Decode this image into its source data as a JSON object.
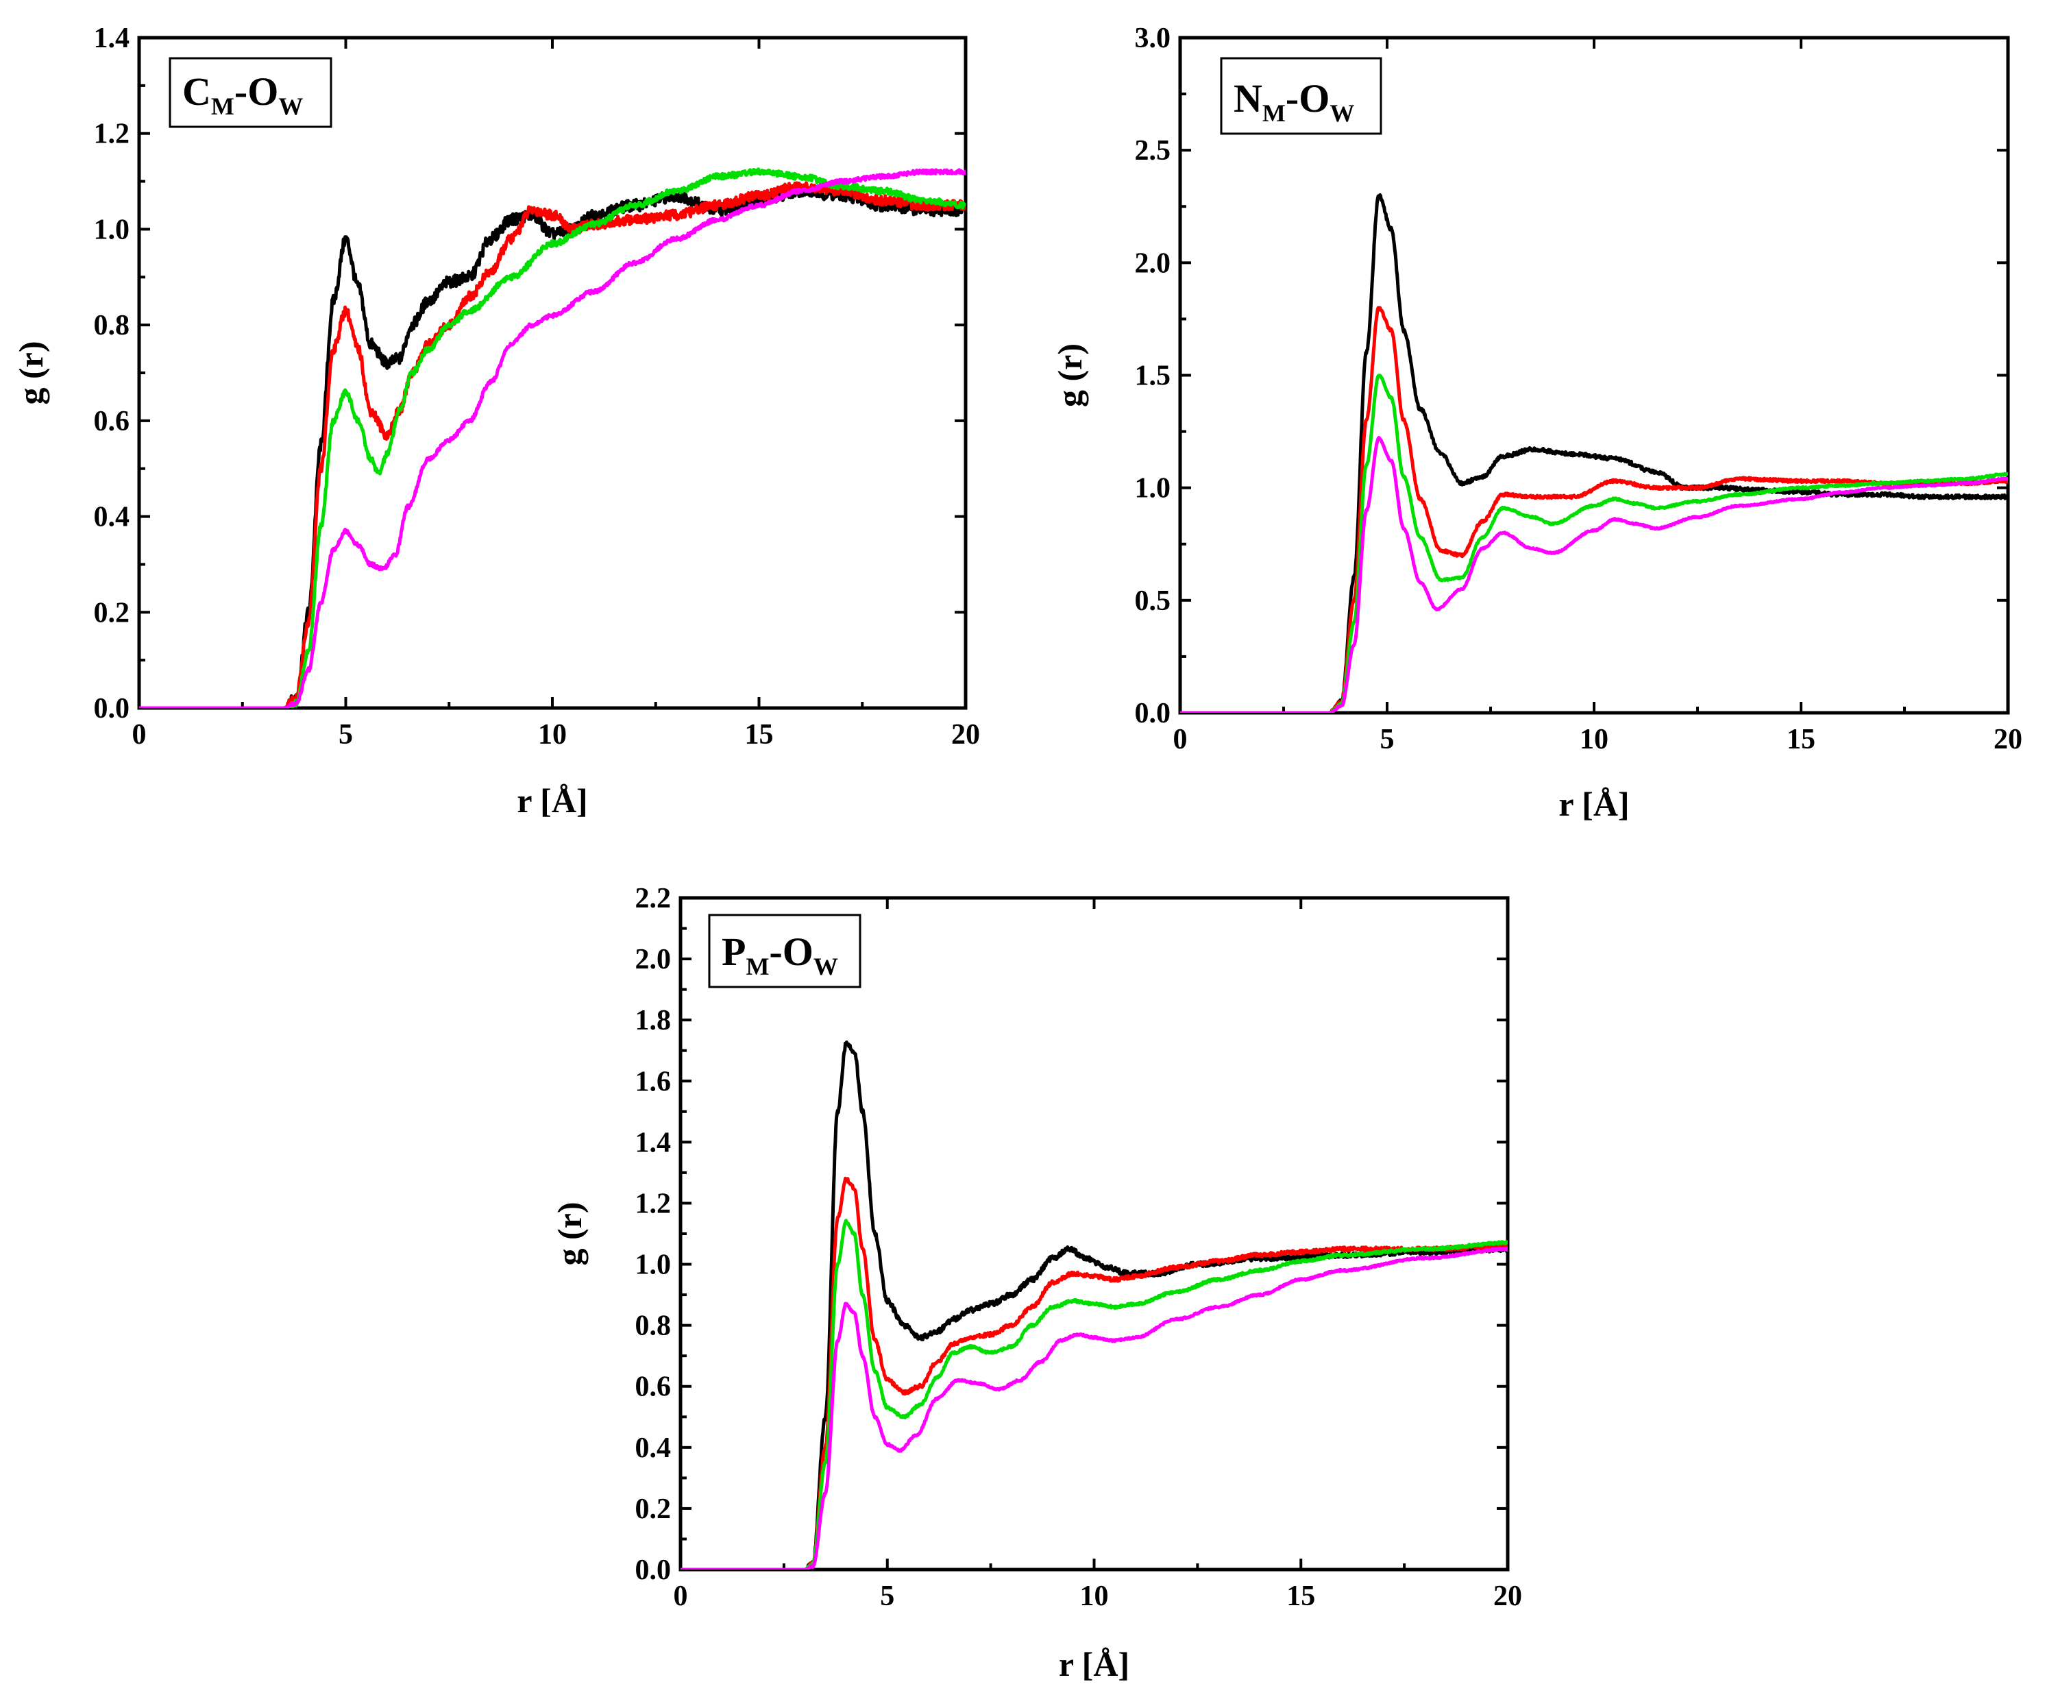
{
  "figure": {
    "series_colors": [
      "#000000",
      "#ff0000",
      "#00dd00",
      "#ff00ff"
    ]
  },
  "chart_data": [
    {
      "type": "line",
      "panel_label": {
        "main": "C",
        "sub1": "M",
        "dash": "-O",
        "sub2": "W"
      },
      "xlabel": "r [Å]",
      "ylabel": "g (r)",
      "xlim": [
        0,
        20
      ],
      "ylim": [
        0,
        1.4
      ],
      "x_ticks": [
        "0",
        "5",
        "10",
        "15",
        "20"
      ],
      "y_ticks": [
        "0.0",
        "0.2",
        "0.4",
        "0.6",
        "0.8",
        "1.0",
        "1.2",
        "1.4"
      ],
      "series": [
        {
          "color": "#000000",
          "noise": 0.012,
          "x": [
            0,
            3.5,
            3.8,
            4.1,
            4.4,
            4.7,
            5.0,
            5.3,
            5.6,
            6.0,
            6.3,
            6.6,
            7.0,
            7.5,
            8.0,
            8.5,
            9.0,
            9.5,
            10.0,
            10.5,
            11.0,
            12.0,
            13.0,
            14.0,
            15.0,
            16.0,
            17.0,
            18.0,
            19.0,
            20.0
          ],
          "y": [
            0,
            0,
            0.02,
            0.2,
            0.55,
            0.85,
            0.98,
            0.88,
            0.76,
            0.72,
            0.73,
            0.8,
            0.85,
            0.89,
            0.9,
            0.98,
            1.02,
            1.03,
            0.99,
            1.0,
            1.03,
            1.05,
            1.07,
            1.04,
            1.06,
            1.08,
            1.07,
            1.05,
            1.04,
            1.04
          ]
        },
        {
          "color": "#ff0000",
          "noise": 0.01,
          "x": [
            0,
            3.5,
            3.8,
            4.1,
            4.4,
            4.7,
            5.0,
            5.3,
            5.6,
            6.0,
            6.3,
            6.6,
            7.0,
            7.5,
            8.0,
            8.5,
            9.0,
            9.5,
            10.0,
            10.5,
            11.0,
            12.0,
            13.0,
            14.0,
            15.0,
            16.0,
            17.0,
            18.0,
            19.0,
            20.0
          ],
          "y": [
            0,
            0,
            0.02,
            0.18,
            0.5,
            0.75,
            0.83,
            0.75,
            0.62,
            0.57,
            0.62,
            0.7,
            0.76,
            0.8,
            0.86,
            0.91,
            0.98,
            1.04,
            1.03,
            1.0,
            1.01,
            1.02,
            1.03,
            1.05,
            1.07,
            1.09,
            1.08,
            1.06,
            1.05,
            1.05
          ]
        },
        {
          "color": "#00dd00",
          "noise": 0.006,
          "x": [
            0,
            3.5,
            3.8,
            4.1,
            4.4,
            4.7,
            5.0,
            5.3,
            5.6,
            5.8,
            6.0,
            6.3,
            6.6,
            7.0,
            7.5,
            8.0,
            9.0,
            10.0,
            11.0,
            12.0,
            13.0,
            14.0,
            15.0,
            16.0,
            17.0,
            18.0,
            19.0,
            20.0
          ],
          "y": [
            0,
            0,
            0.01,
            0.12,
            0.38,
            0.6,
            0.66,
            0.6,
            0.52,
            0.49,
            0.53,
            0.62,
            0.7,
            0.75,
            0.8,
            0.83,
            0.9,
            0.97,
            1.01,
            1.05,
            1.08,
            1.11,
            1.12,
            1.11,
            1.09,
            1.08,
            1.06,
            1.05
          ]
        },
        {
          "color": "#ff00ff",
          "noise": 0.004,
          "x": [
            0,
            3.5,
            3.8,
            4.1,
            4.4,
            4.7,
            5.0,
            5.3,
            5.6,
            5.9,
            6.2,
            6.5,
            7.0,
            7.5,
            8.0,
            8.5,
            9.0,
            9.5,
            10.0,
            11.0,
            12.0,
            13.0,
            14.0,
            15.0,
            16.0,
            17.0,
            18.0,
            19.0,
            20.0
          ],
          "y": [
            0,
            0,
            0.01,
            0.08,
            0.22,
            0.33,
            0.37,
            0.34,
            0.3,
            0.29,
            0.32,
            0.42,
            0.52,
            0.56,
            0.6,
            0.68,
            0.76,
            0.8,
            0.82,
            0.87,
            0.93,
            0.98,
            1.02,
            1.05,
            1.08,
            1.1,
            1.11,
            1.12,
            1.12
          ]
        }
      ]
    },
    {
      "type": "line",
      "panel_label": {
        "main": "N",
        "sub1": "M",
        "dash": "-O",
        "sub2": "W"
      },
      "xlabel": "r [Å]",
      "ylabel": "g (r)",
      "xlim": [
        0,
        20
      ],
      "ylim": [
        0,
        3.0
      ],
      "x_ticks": [
        "0",
        "5",
        "10",
        "15",
        "20"
      ],
      "y_ticks": [
        "0.0",
        "0.5",
        "1.0",
        "1.5",
        "2.0",
        "2.5",
        "3.0"
      ],
      "series": [
        {
          "color": "#000000",
          "noise": 0.008,
          "x": [
            0,
            3.6,
            3.9,
            4.2,
            4.5,
            4.8,
            5.1,
            5.4,
            5.8,
            6.3,
            6.8,
            7.3,
            7.8,
            8.5,
            9.5,
            10.5,
            11.5,
            12.2,
            13.0,
            14.0,
            15.0,
            16.0,
            17.0,
            18.0,
            19.0,
            20.0
          ],
          "y": [
            0,
            0,
            0.05,
            0.6,
            1.6,
            2.3,
            2.15,
            1.7,
            1.35,
            1.15,
            1.02,
            1.05,
            1.14,
            1.17,
            1.15,
            1.13,
            1.07,
            1.0,
            1.0,
            0.99,
            0.98,
            0.97,
            0.97,
            0.96,
            0.96,
            0.96
          ]
        },
        {
          "color": "#ff0000",
          "noise": 0.006,
          "x": [
            0,
            3.6,
            3.9,
            4.2,
            4.5,
            4.8,
            5.1,
            5.4,
            5.8,
            6.3,
            6.8,
            7.3,
            7.8,
            8.5,
            9.5,
            10.5,
            11.5,
            12.5,
            13.5,
            15.0,
            16.0,
            17.0,
            18.0,
            19.0,
            20.0
          ],
          "y": [
            0,
            0,
            0.05,
            0.5,
            1.3,
            1.8,
            1.7,
            1.3,
            0.95,
            0.72,
            0.7,
            0.85,
            0.97,
            0.96,
            0.96,
            1.03,
            1.0,
            1.0,
            1.04,
            1.03,
            1.03,
            1.02,
            1.02,
            1.02,
            1.03
          ]
        },
        {
          "color": "#00dd00",
          "noise": 0.004,
          "x": [
            0,
            3.6,
            3.9,
            4.2,
            4.5,
            4.8,
            5.1,
            5.4,
            5.8,
            6.3,
            6.8,
            7.3,
            7.8,
            8.5,
            9.0,
            10.0,
            10.5,
            11.0,
            11.5,
            12.5,
            13.5,
            15.0,
            16.0,
            17.0,
            18.0,
            19.0,
            20.0
          ],
          "y": [
            0,
            0,
            0.04,
            0.4,
            1.1,
            1.5,
            1.4,
            1.05,
            0.78,
            0.59,
            0.6,
            0.78,
            0.91,
            0.87,
            0.84,
            0.92,
            0.95,
            0.93,
            0.91,
            0.94,
            0.97,
            1.0,
            1.01,
            1.02,
            1.03,
            1.04,
            1.06
          ]
        },
        {
          "color": "#ff00ff",
          "noise": 0.003,
          "x": [
            0,
            3.6,
            3.9,
            4.2,
            4.5,
            4.8,
            5.1,
            5.4,
            5.8,
            6.2,
            6.8,
            7.3,
            7.8,
            8.5,
            9.0,
            10.0,
            10.5,
            11.0,
            11.5,
            12.5,
            13.5,
            15.0,
            16.0,
            17.0,
            18.0,
            19.0,
            20.0
          ],
          "y": [
            0,
            0,
            0.03,
            0.3,
            0.9,
            1.22,
            1.12,
            0.82,
            0.58,
            0.46,
            0.55,
            0.73,
            0.8,
            0.73,
            0.71,
            0.81,
            0.86,
            0.84,
            0.82,
            0.87,
            0.92,
            0.95,
            0.98,
            1.0,
            1.01,
            1.02,
            1.04
          ]
        }
      ]
    },
    {
      "type": "line",
      "panel_label": {
        "main": "P",
        "sub1": "M",
        "dash": "-O",
        "sub2": "W"
      },
      "xlabel": "r [Å]",
      "ylabel": "g (r)",
      "xlim": [
        0,
        20
      ],
      "ylim": [
        0,
        2.2
      ],
      "x_ticks": [
        "0",
        "5",
        "10",
        "15",
        "20"
      ],
      "y_ticks": [
        "0.0",
        "0.2",
        "0.4",
        "0.6",
        "0.8",
        "1.0",
        "1.2",
        "1.4",
        "1.6",
        "1.8",
        "2.0",
        "2.2"
      ],
      "series": [
        {
          "color": "#000000",
          "noise": 0.008,
          "x": [
            0,
            3.0,
            3.2,
            3.5,
            3.8,
            4.0,
            4.2,
            4.4,
            4.7,
            5.0,
            5.4,
            5.8,
            6.2,
            6.6,
            7.0,
            7.5,
            8.0,
            8.5,
            9.0,
            9.4,
            9.8,
            10.3,
            10.8,
            11.5,
            12.5,
            14.0,
            16.0,
            18.0,
            20.0
          ],
          "y": [
            0,
            0,
            0.02,
            0.5,
            1.5,
            1.72,
            1.7,
            1.5,
            1.1,
            0.88,
            0.8,
            0.76,
            0.78,
            0.82,
            0.85,
            0.87,
            0.9,
            0.95,
            1.02,
            1.05,
            1.02,
            0.99,
            0.97,
            0.97,
            1.0,
            1.02,
            1.03,
            1.04,
            1.05
          ]
        },
        {
          "color": "#ff0000",
          "noise": 0.006,
          "x": [
            0,
            3.0,
            3.2,
            3.5,
            3.8,
            4.0,
            4.2,
            4.4,
            4.7,
            5.0,
            5.4,
            5.8,
            6.2,
            6.6,
            7.0,
            7.5,
            8.0,
            8.5,
            9.0,
            9.5,
            10.0,
            10.5,
            11.0,
            12.0,
            13.0,
            14.0,
            15.0,
            16.0,
            18.0,
            20.0
          ],
          "y": [
            0,
            0,
            0.02,
            0.4,
            1.15,
            1.28,
            1.25,
            1.05,
            0.75,
            0.62,
            0.58,
            0.6,
            0.68,
            0.74,
            0.76,
            0.77,
            0.8,
            0.86,
            0.94,
            0.97,
            0.96,
            0.95,
            0.96,
            0.99,
            1.01,
            1.03,
            1.04,
            1.05,
            1.05,
            1.06
          ]
        },
        {
          "color": "#00dd00",
          "noise": 0.004,
          "x": [
            0,
            3.0,
            3.2,
            3.5,
            3.8,
            4.0,
            4.2,
            4.4,
            4.7,
            5.0,
            5.4,
            5.8,
            6.2,
            6.6,
            7.0,
            7.5,
            8.0,
            8.5,
            9.0,
            9.5,
            10.0,
            10.5,
            11.0,
            12.0,
            13.0,
            14.0,
            15.0,
            16.0,
            18.0,
            20.0
          ],
          "y": [
            0,
            0,
            0.02,
            0.35,
            1.0,
            1.14,
            1.1,
            0.9,
            0.65,
            0.53,
            0.5,
            0.54,
            0.63,
            0.71,
            0.73,
            0.71,
            0.73,
            0.8,
            0.86,
            0.88,
            0.87,
            0.86,
            0.87,
            0.91,
            0.95,
            0.98,
            1.01,
            1.03,
            1.05,
            1.07
          ]
        },
        {
          "color": "#ff00ff",
          "noise": 0.003,
          "x": [
            0,
            3.0,
            3.2,
            3.5,
            3.8,
            4.0,
            4.2,
            4.4,
            4.7,
            5.0,
            5.3,
            5.7,
            6.2,
            6.7,
            7.2,
            7.7,
            8.2,
            8.7,
            9.2,
            9.6,
            10.0,
            10.5,
            11.0,
            12.0,
            13.0,
            14.0,
            15.0,
            16.0,
            18.0,
            20.0
          ],
          "y": [
            0,
            0,
            0.01,
            0.25,
            0.75,
            0.87,
            0.84,
            0.7,
            0.5,
            0.41,
            0.39,
            0.44,
            0.56,
            0.62,
            0.61,
            0.59,
            0.62,
            0.68,
            0.75,
            0.77,
            0.76,
            0.75,
            0.76,
            0.82,
            0.86,
            0.9,
            0.95,
            0.98,
            1.02,
            1.05
          ]
        }
      ]
    }
  ]
}
